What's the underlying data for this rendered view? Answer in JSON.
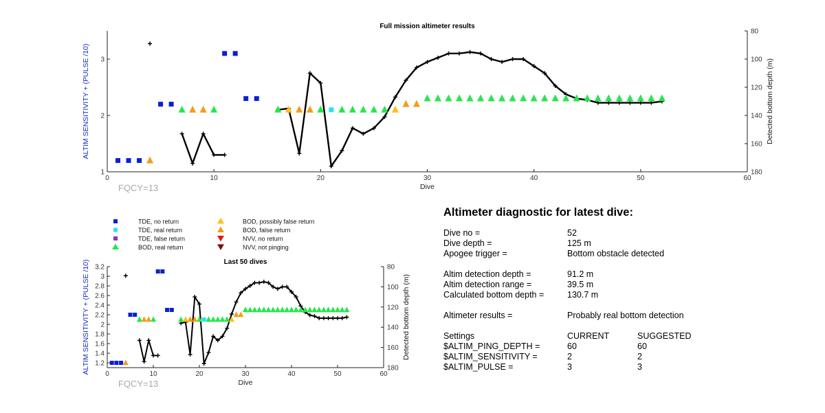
{
  "fig": {
    "fqcy_label": "FQCY=13"
  },
  "legend": [
    {
      "label": "TDE, no return",
      "shape": "square",
      "color": "#0a1fd6"
    },
    {
      "label": "TDE, real return",
      "shape": "square",
      "color": "#25e4ee"
    },
    {
      "label": "TDE, false return",
      "shape": "square",
      "color": "#8a35c9"
    },
    {
      "label": "BOD, real return",
      "shape": "triangle-up",
      "color": "#22e84a"
    },
    {
      "label": "BOD, possibly false return",
      "shape": "triangle-up",
      "color": "#f7c21a"
    },
    {
      "label": "BOD, false return",
      "shape": "triangle-up",
      "color": "#f39c1a"
    },
    {
      "label": "NVV, no return",
      "shape": "triangle-down",
      "color": "#e01818"
    },
    {
      "label": "NVV, not pinging",
      "shape": "triangle-down",
      "color": "#7a1010"
    }
  ],
  "chart_data": [
    {
      "type": "scatter",
      "title": "Full mission altimeter results",
      "xlabel": "Dive",
      "ylabel_left": "ALTIM SENSITIVITY + (PULSE /10)",
      "ylabel_right": "Detected bottom depth (m)",
      "xlim": [
        0,
        60
      ],
      "xticks": [
        0,
        10,
        20,
        30,
        40,
        50,
        60
      ],
      "ylim_left": [
        1,
        3.5
      ],
      "yticks_left": [
        1,
        2,
        3
      ],
      "ylim_right": [
        80,
        180
      ],
      "yticks_right": [
        80,
        100,
        120,
        140,
        160,
        180
      ],
      "right_axis_reversed": true
    },
    {
      "type": "scatter",
      "title": "Last 50 dives",
      "xlabel": "Dive",
      "ylabel_left": "ALTIM SENSITIVITY + (PULSE /10)",
      "ylabel_right": "Detected bottom depth (m)",
      "xlim": [
        0,
        60
      ],
      "xticks": [
        0,
        10,
        20,
        30,
        40,
        50,
        60
      ],
      "ylim_left": [
        1.1,
        3.2
      ],
      "yticks_left": [
        1.2,
        1.4,
        1.6,
        1.8,
        2,
        2.2,
        2.4,
        2.6,
        2.8,
        3,
        3.2
      ],
      "ylim_right": [
        80,
        180
      ],
      "yticks_right": [
        80,
        100,
        120,
        140,
        160,
        180
      ],
      "right_axis_reversed": true
    }
  ],
  "series": {
    "tde_no_return": {
      "x": [
        1,
        2,
        3,
        5,
        6,
        11,
        12,
        13,
        14
      ],
      "y": [
        1.2,
        1.2,
        1.2,
        2.2,
        2.2,
        3.1,
        3.1,
        2.3,
        2.3
      ]
    },
    "tde_real_return": {
      "x": [
        21
      ],
      "y": [
        2.1
      ]
    },
    "bod_real_return": {
      "x": [
        7,
        10,
        16,
        20,
        22,
        23,
        24,
        25,
        26,
        30,
        31,
        32,
        33,
        34,
        35,
        36,
        37,
        38,
        39,
        40,
        41,
        42,
        43,
        44,
        45,
        46,
        47,
        48,
        49,
        50,
        51,
        52
      ],
      "y": [
        2.1,
        2.1,
        2.1,
        2.1,
        2.1,
        2.1,
        2.1,
        2.1,
        2.1,
        2.3,
        2.3,
        2.3,
        2.3,
        2.3,
        2.3,
        2.3,
        2.3,
        2.3,
        2.3,
        2.3,
        2.3,
        2.3,
        2.3,
        2.3,
        2.3,
        2.3,
        2.3,
        2.3,
        2.3,
        2.3,
        2.3,
        2.3
      ]
    },
    "bod_possibly_false_return": {
      "x": [
        17,
        27
      ],
      "y": [
        2.1,
        2.1
      ]
    },
    "bod_false_return": {
      "x": [
        4,
        8,
        9,
        18,
        19,
        28,
        29
      ],
      "y": [
        1.2,
        2.1,
        2.1,
        2.1,
        2.1,
        2.2,
        2.2
      ]
    },
    "isolated_depth": {
      "x": [
        4
      ],
      "depth": [
        89
      ]
    },
    "bottom_depth_segments": [
      {
        "x": [
          7,
          8,
          9,
          10,
          11
        ],
        "depth": [
          153,
          174,
          153,
          168,
          168
        ]
      },
      {
        "x": [
          16,
          17,
          18,
          19,
          20,
          21,
          22,
          23,
          24,
          25,
          26,
          27,
          28,
          29,
          30,
          31,
          32,
          33,
          34,
          35,
          36,
          37,
          38,
          39,
          40,
          41,
          42,
          43,
          44,
          45,
          46,
          47,
          48,
          49,
          50,
          51,
          52
        ],
        "depth": [
          136,
          135,
          167,
          110,
          117,
          176,
          165,
          149,
          153,
          149,
          141,
          127,
          115,
          106,
          102,
          99,
          96,
          96,
          95,
          96,
          100,
          102,
          100,
          100,
          105,
          110,
          119,
          125,
          128,
          129,
          131,
          131,
          131,
          131,
          131,
          131,
          130
        ]
      }
    ]
  },
  "diagnostic": {
    "title": "Altimeter diagnostic for latest dive:",
    "dive_no": {
      "label": "Dive no =",
      "value": "52"
    },
    "dive_depth": {
      "label": "Dive depth =",
      "value": "125 m"
    },
    "apogee": {
      "label": "Apogee trigger =",
      "value": "Bottom obstacle detected"
    },
    "detect_depth": {
      "label": "Altim detection depth =",
      "value": "91.2 m"
    },
    "detect_range": {
      "label": "Altim detection range =",
      "value": "39.5 m"
    },
    "calc_bottom": {
      "label": "Calculated bottom depth =",
      "value": "130.7 m"
    },
    "results": {
      "label": "Altimeter results =",
      "value": "Probably real bottom detection"
    },
    "settings_header": {
      "label": "Settings",
      "current": "CURRENT",
      "suggested": "SUGGESTED"
    },
    "settings": [
      {
        "name": "$ALTIM_PING_DEPTH =",
        "current": "60",
        "suggested": "60"
      },
      {
        "name": "$ALTIM_SENSITIVITY =",
        "current": "2",
        "suggested": "2"
      },
      {
        "name": "$ALTIM_PULSE =",
        "current": "3",
        "suggested": "3"
      }
    ]
  }
}
